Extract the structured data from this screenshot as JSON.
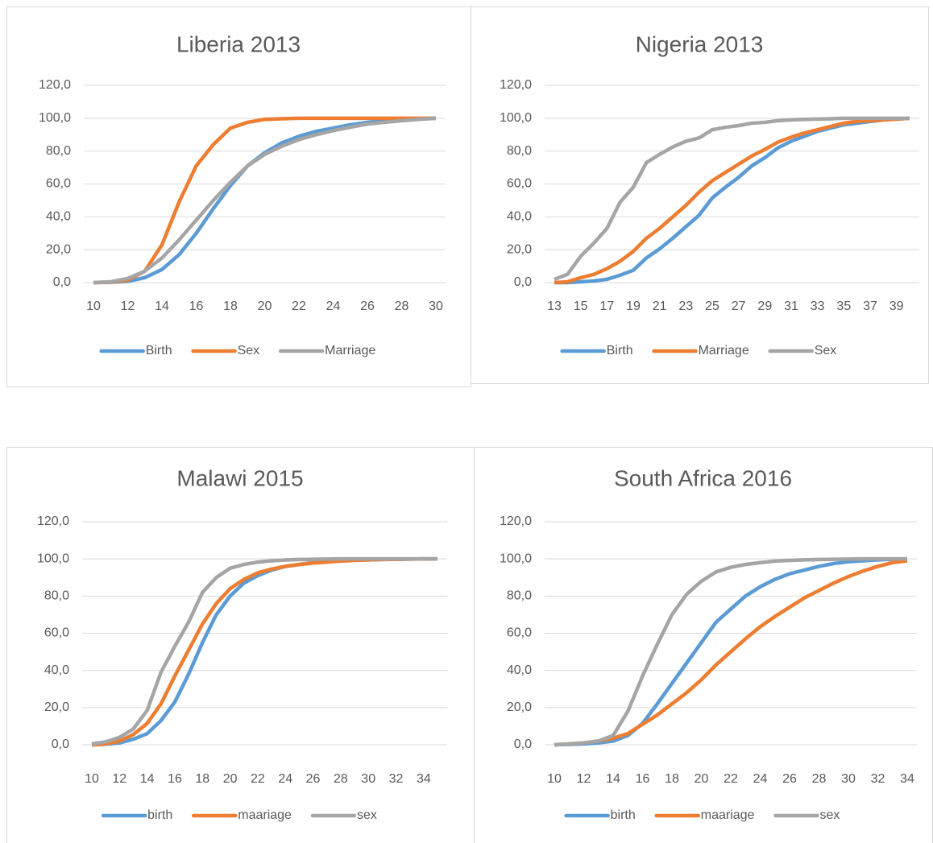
{
  "chart_data": [
    {
      "type": "line",
      "title": "Liberia 2013",
      "categories": [
        10,
        null,
        12,
        null,
        14,
        null,
        16,
        null,
        18,
        null,
        20,
        null,
        22,
        null,
        24,
        null,
        26,
        null,
        28,
        null,
        30
      ],
      "series": [
        {
          "name": "Birth",
          "color": "#5b9bd5",
          "values": [
            0,
            0.2,
            0.8,
            3,
            8,
            17,
            30,
            45,
            59,
            71,
            79,
            85,
            89,
            92,
            94,
            96,
            97.5,
            98.5,
            99.3,
            99.7,
            100
          ]
        },
        {
          "name": "Sex",
          "color": "#ed7d31",
          "values": [
            0,
            0.3,
            1.5,
            7,
            23,
            49,
            71,
            84,
            94,
            97.5,
            99.3,
            99.7,
            100,
            100,
            100,
            100,
            100,
            100,
            100,
            100,
            100
          ]
        },
        {
          "name": "Marriage",
          "color": "#a5a5a5",
          "values": [
            0,
            0.5,
            2.5,
            7,
            15,
            26,
            38,
            50,
            61,
            71,
            78,
            83,
            87,
            90,
            92.5,
            94.5,
            96.5,
            97.5,
            98.5,
            99.3,
            100
          ]
        }
      ],
      "ylim": [
        0,
        120
      ],
      "yticks": [
        {
          "value": 0,
          "label": "0,0"
        },
        {
          "value": 20,
          "label": "20,0"
        },
        {
          "value": 40,
          "label": "40,0"
        },
        {
          "value": 60,
          "label": "60,0"
        },
        {
          "value": 80,
          "label": "80,0"
        },
        {
          "value": 100,
          "label": "100,0"
        },
        {
          "value": 120,
          "label": "120,0"
        }
      ],
      "grid": true,
      "legend": "bottom"
    },
    {
      "type": "line",
      "title": "Nigeria 2013",
      "categories": [
        13,
        null,
        15,
        null,
        17,
        null,
        19,
        null,
        21,
        null,
        23,
        null,
        25,
        null,
        27,
        null,
        29,
        null,
        31,
        null,
        33,
        null,
        35,
        null,
        37,
        null,
        39,
        null
      ],
      "series": [
        {
          "name": "Birth",
          "color": "#5b9bd5",
          "values": [
            0,
            0,
            0.5,
            1,
            2,
            4.5,
            7.5,
            15,
            20.5,
            27,
            34,
            41,
            51.5,
            58,
            64,
            71,
            76,
            82,
            86,
            89,
            92,
            94,
            96,
            97,
            98,
            99,
            99.5,
            100
          ]
        },
        {
          "name": "Marriage",
          "color": "#ed7d31",
          "values": [
            0,
            0.5,
            3,
            5,
            8.5,
            13,
            19,
            27,
            33,
            40,
            47,
            55,
            62,
            67,
            72,
            77,
            81,
            85.5,
            88.5,
            91,
            93,
            95,
            97,
            98,
            98.5,
            99,
            99.5,
            100
          ]
        },
        {
          "name": "Sex",
          "color": "#a5a5a5",
          "values": [
            2,
            5,
            16,
            24,
            33,
            49,
            58,
            73,
            78,
            82.5,
            86,
            88,
            93,
            94.5,
            95.5,
            97,
            97.5,
            98.5,
            99,
            99.3,
            99.5,
            99.7,
            100,
            100,
            100,
            100,
            100,
            100
          ]
        }
      ],
      "ylim": [
        0,
        120
      ],
      "yticks": [
        {
          "value": 0,
          "label": "0,0"
        },
        {
          "value": 20,
          "label": "20,0"
        },
        {
          "value": 40,
          "label": "40,0"
        },
        {
          "value": 60,
          "label": "60,0"
        },
        {
          "value": 80,
          "label": "80,0"
        },
        {
          "value": 100,
          "label": "100,0"
        },
        {
          "value": 120,
          "label": "120,0"
        }
      ],
      "grid": true,
      "legend": "bottom"
    },
    {
      "type": "line",
      "title": "Malawi 2015",
      "categories": [
        10,
        null,
        12,
        null,
        14,
        null,
        16,
        null,
        18,
        null,
        20,
        null,
        22,
        null,
        24,
        null,
        26,
        null,
        28,
        null,
        30,
        null,
        32,
        null,
        34,
        null
      ],
      "series": [
        {
          "name": "birth",
          "color": "#5b9bd5",
          "values": [
            0,
            0.3,
            1,
            3,
            6,
            13,
            23,
            38,
            55,
            70,
            80,
            87,
            91,
            94,
            96,
            97,
            98,
            98.5,
            99,
            99.3,
            99.5,
            99.7,
            99.8,
            99.9,
            100,
            100
          ]
        },
        {
          "name": "maariage",
          "color": "#ed7d31",
          "values": [
            0,
            0.5,
            2,
            5.5,
            11.5,
            22,
            37,
            51,
            65,
            76,
            84,
            89,
            92.5,
            94.5,
            96,
            97,
            97.8,
            98.3,
            98.8,
            99.2,
            99.5,
            99.7,
            99.8,
            99.9,
            100,
            100
          ]
        },
        {
          "name": "sex",
          "color": "#a5a5a5",
          "values": [
            0.5,
            1.5,
            4,
            8.5,
            18.5,
            39,
            53,
            66,
            82,
            90,
            95,
            97,
            98.3,
            99,
            99.4,
            99.7,
            99.8,
            99.9,
            100,
            100,
            100,
            100,
            100,
            100,
            100,
            100
          ]
        }
      ],
      "ylim": [
        0,
        120
      ],
      "yticks": [
        {
          "value": 0,
          "label": "0,0"
        },
        {
          "value": 20,
          "label": "20,0"
        },
        {
          "value": 40,
          "label": "40,0"
        },
        {
          "value": 60,
          "label": "60,0"
        },
        {
          "value": 80,
          "label": "80,0"
        },
        {
          "value": 100,
          "label": "100,0"
        },
        {
          "value": 120,
          "label": "120,0"
        }
      ],
      "grid": true,
      "legend": "bottom"
    },
    {
      "type": "line",
      "title": "South Africa 2016",
      "categories": [
        10,
        null,
        12,
        null,
        14,
        null,
        16,
        null,
        18,
        null,
        20,
        null,
        22,
        null,
        24,
        null,
        26,
        null,
        28,
        null,
        30,
        null,
        32,
        null,
        34
      ],
      "series": [
        {
          "name": "birth",
          "color": "#5b9bd5",
          "values": [
            0,
            0.2,
            0.5,
            1,
            2,
            5,
            11.5,
            22,
            33,
            44,
            55,
            66,
            73,
            80,
            85,
            89,
            92,
            94,
            96,
            97.5,
            98.5,
            99,
            99.5,
            99.8,
            100
          ]
        },
        {
          "name": "maariage",
          "color": "#ed7d31",
          "values": [
            0,
            0.5,
            1,
            2,
            3.5,
            6,
            11,
            16,
            22,
            28,
            35,
            43,
            50,
            57,
            63.5,
            69,
            74,
            79,
            83,
            87,
            90.5,
            93.5,
            96,
            98,
            99
          ]
        },
        {
          "name": "sex",
          "color": "#a5a5a5",
          "values": [
            0,
            0.5,
            1,
            2,
            5,
            18,
            37,
            54,
            70,
            81,
            88,
            93,
            95.5,
            97,
            98,
            98.8,
            99.2,
            99.5,
            99.7,
            99.8,
            99.9,
            100,
            100,
            100,
            100
          ]
        }
      ],
      "ylim": [
        0,
        120
      ],
      "yticks": [
        {
          "value": 0,
          "label": "0,0"
        },
        {
          "value": 20,
          "label": "20,0"
        },
        {
          "value": 40,
          "label": "40,0"
        },
        {
          "value": 60,
          "label": "60,0"
        },
        {
          "value": 80,
          "label": "80,0"
        },
        {
          "value": 100,
          "label": "100,0"
        },
        {
          "value": 120,
          "label": "120,0"
        }
      ],
      "grid": true,
      "legend": "bottom"
    }
  ]
}
